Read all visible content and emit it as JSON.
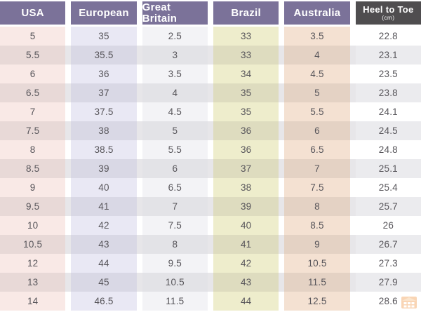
{
  "chart_data": {
    "type": "table",
    "columns": [
      {
        "label": "USA"
      },
      {
        "label": "European"
      },
      {
        "label": "Great Britain"
      },
      {
        "label": "Brazil"
      },
      {
        "label": "Australia"
      },
      {
        "label": "Heel to Toe",
        "sublabel": "(cm)"
      }
    ],
    "rows": [
      [
        "5",
        "35",
        "2.5",
        "33",
        "3.5",
        "22.8"
      ],
      [
        "5.5",
        "35.5",
        "3",
        "33",
        "4",
        "23.1"
      ],
      [
        "6",
        "36",
        "3.5",
        "34",
        "4.5",
        "23.5"
      ],
      [
        "6.5",
        "37",
        "4",
        "35",
        "5",
        "23.8"
      ],
      [
        "7",
        "37.5",
        "4.5",
        "35",
        "5.5",
        "24.1"
      ],
      [
        "7.5",
        "38",
        "5",
        "36",
        "6",
        "24.5"
      ],
      [
        "8",
        "38.5",
        "5.5",
        "36",
        "6.5",
        "24.8"
      ],
      [
        "8.5",
        "39",
        "6",
        "37",
        "7",
        "25.1"
      ],
      [
        "9",
        "40",
        "6.5",
        "38",
        "7.5",
        "25.4"
      ],
      [
        "9.5",
        "41",
        "7",
        "39",
        "8",
        "25.7"
      ],
      [
        "10",
        "42",
        "7.5",
        "40",
        "8.5",
        "26"
      ],
      [
        "10.5",
        "43",
        "8",
        "41",
        "9",
        "26.7"
      ],
      [
        "12",
        "44",
        "9.5",
        "42",
        "10.5",
        "27.3"
      ],
      [
        "13",
        "45",
        "10.5",
        "43",
        "11.5",
        "27.9"
      ],
      [
        "14",
        "46.5",
        "11.5",
        "44",
        "12.5",
        "28.6"
      ]
    ],
    "layout": {
      "header_style": "colored-blocks",
      "alternating_rows": true,
      "grid": "off"
    }
  },
  "colors": {
    "header_purple": "#7b7299",
    "header_dark": "#4f4d4f",
    "header_text": "#ffffff",
    "body_text": "#57555a",
    "row_alt_gap": "#e7e6e9",
    "column_backgrounds": [
      "#f9e9e6",
      "#e9e8f4",
      "#f3f3f6",
      "#eeedcc",
      "#f4e1d2",
      "#ffffff"
    ],
    "column_backgrounds_alt": [
      "#e8d9d7",
      "#d9d8e5",
      "#e3e3e7",
      "#dedcbf",
      "#e4d2c4",
      "#ebebee"
    ],
    "watermark_orange": "#f2a35c"
  },
  "icons": {
    "watermark": "logo-watermark"
  }
}
